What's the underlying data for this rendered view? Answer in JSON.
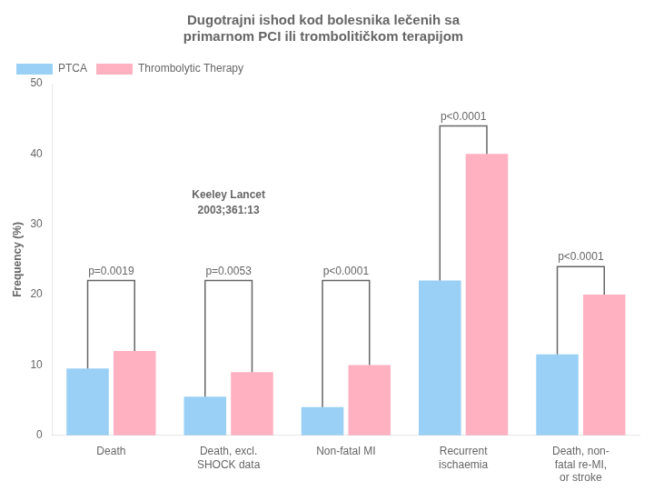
{
  "chart_data": {
    "type": "bar",
    "title": "Dugotrajni ishod kod bolesnika lečenih sa\nprimarnom PCI ili trombolitičkom terapijom",
    "ylabel": "Frequency (%)",
    "categories": [
      "Death",
      "Death, excl.\nSHOCK data",
      "Non-fatal MI",
      "Recurrent\nischaemia",
      "Death, non-\nfatal re-MI,\nor stroke"
    ],
    "series": [
      {
        "name": "PTCA",
        "values": [
          9.5,
          5.5,
          4.0,
          22.0,
          11.5
        ]
      },
      {
        "name": "Thrombolytic Therapy",
        "values": [
          12.0,
          9.0,
          10.0,
          40.0,
          20.0
        ]
      }
    ],
    "ylim": [
      0,
      50
    ],
    "yticks": [
      0,
      10,
      20,
      30,
      40,
      50
    ],
    "grid": false,
    "legend": "upper left",
    "bracket_tops": [
      22.0,
      22.0,
      22.0,
      44.0,
      24.0
    ],
    "p_values": [
      "p=0.0019",
      "p=0.0053",
      "p<0.0001",
      "p<0.0001",
      "p<0.0001"
    ],
    "annotations": [
      {
        "text": "Keeley Lancet\n2003;361:13",
        "x": "Death, excl.\nSHOCK data",
        "y": 33
      }
    ]
  }
}
